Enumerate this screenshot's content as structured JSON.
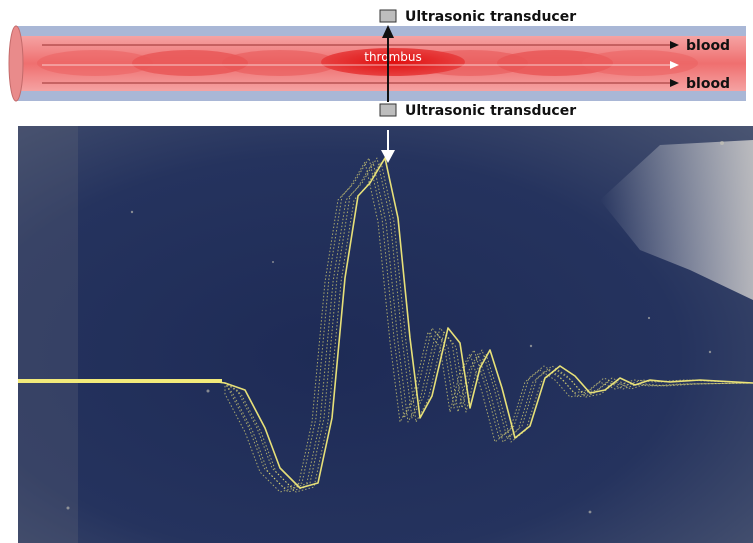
{
  "labels": {
    "transducer_top": "Ultrasonic transducer",
    "transducer_bottom": "Ultrasonic transducer",
    "thrombus": "thrombus",
    "blood_upper": "blood",
    "blood_lower": "blood"
  },
  "colors": {
    "vessel_wall": "#a9b7d6",
    "vessel_lumen": "#f07c7c",
    "thrombus": "#e11818",
    "transducer": "#bdbdbd",
    "screen_background": "#1f2d57",
    "waveform": "#f2ea7a"
  }
}
